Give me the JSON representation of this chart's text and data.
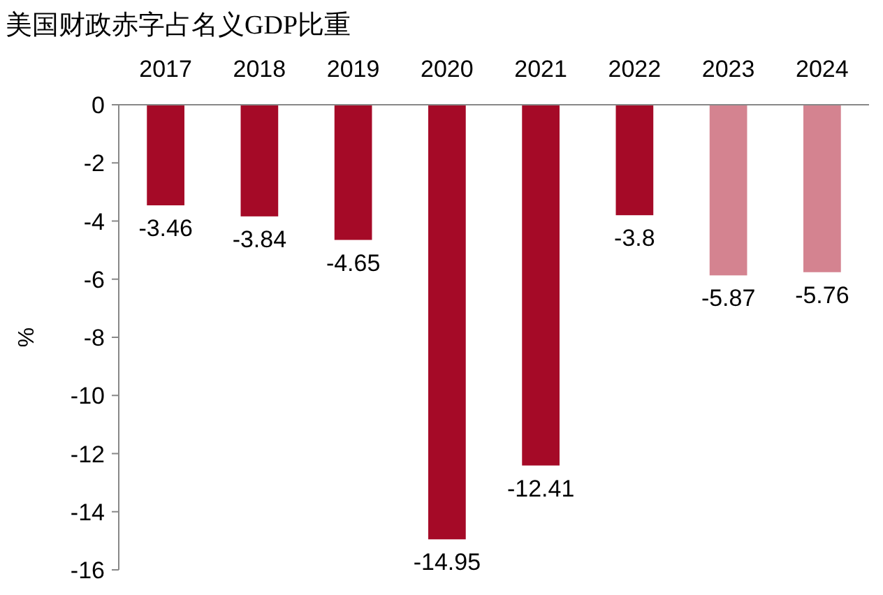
{
  "chart_data": {
    "type": "bar",
    "title": "美国财政赤字占名义GDP比重",
    "ylabel": "%",
    "categories": [
      "2017",
      "2018",
      "2019",
      "2020",
      "2021",
      "2022",
      "2023",
      "2024"
    ],
    "values": [
      -3.46,
      -3.84,
      -4.65,
      -14.95,
      -12.41,
      -3.8,
      -5.87,
      -5.76
    ],
    "colors": [
      "#a50a27",
      "#a50a27",
      "#a50a27",
      "#a50a27",
      "#a50a27",
      "#a50a27",
      "#d48390",
      "#d48390"
    ],
    "ylim": [
      -16,
      0
    ],
    "yticks": [
      -16,
      -14,
      -12,
      -10,
      -8,
      -6,
      -4,
      -2,
      0
    ],
    "data_labels": true
  }
}
